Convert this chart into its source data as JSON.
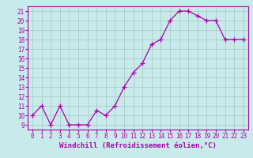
{
  "x": [
    0,
    1,
    2,
    3,
    4,
    5,
    6,
    7,
    8,
    9,
    10,
    11,
    12,
    13,
    14,
    15,
    16,
    17,
    18,
    19,
    20,
    21,
    22,
    23
  ],
  "y": [
    10,
    11,
    9,
    11,
    9,
    9,
    9,
    10.5,
    10,
    11,
    13,
    14.5,
    15.5,
    17.5,
    18,
    20,
    21,
    21,
    20.5,
    20,
    20,
    18,
    18,
    18
  ],
  "line_color": "#aa00aa",
  "marker": "+",
  "marker_size": 4,
  "bg_color": "#c8eaea",
  "grid_color": "#aacccc",
  "xlabel": "Windchill (Refroidissement éolien,°C)",
  "xlim": [
    -0.5,
    23.5
  ],
  "ylim_min": 8.5,
  "ylim_max": 21.5,
  "yticks": [
    9,
    10,
    11,
    12,
    13,
    14,
    15,
    16,
    17,
    18,
    19,
    20,
    21
  ],
  "xticks": [
    0,
    1,
    2,
    3,
    4,
    5,
    6,
    7,
    8,
    9,
    10,
    11,
    12,
    13,
    14,
    15,
    16,
    17,
    18,
    19,
    20,
    21,
    22,
    23
  ],
  "tick_fontsize": 5.5,
  "xlabel_fontsize": 6.5,
  "line_width": 0.9
}
